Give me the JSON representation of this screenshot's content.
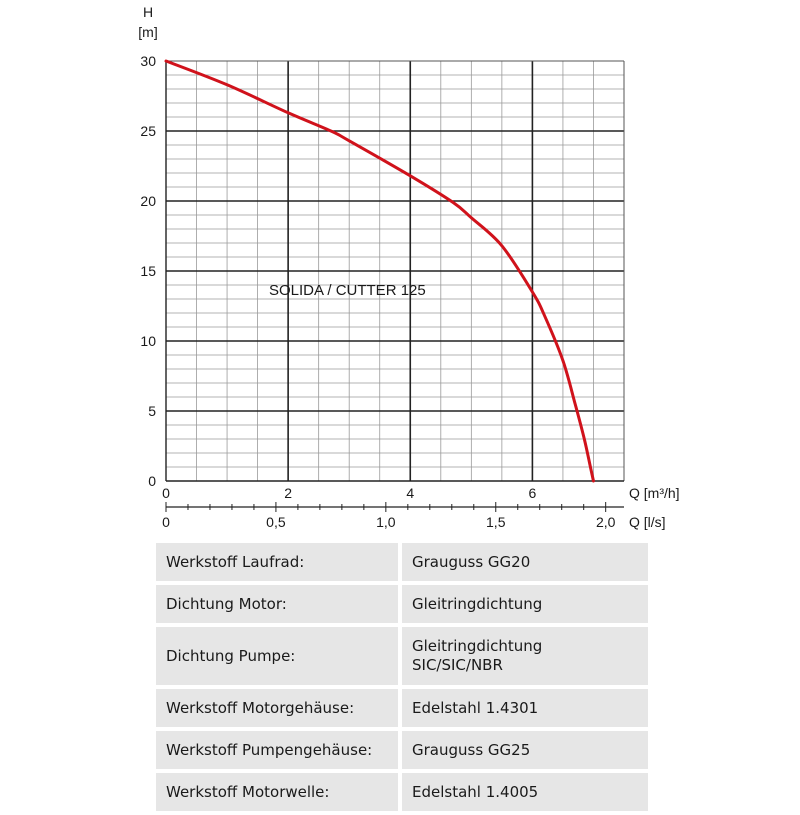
{
  "chart_data": {
    "type": "line",
    "x_axis_label": "Q [m³/h]",
    "x2_axis_label": "Q [l/s]",
    "y_axis_label_line1": "H",
    "y_axis_label_line2": "[m]",
    "xlim": [
      0,
      7.5
    ],
    "ylim": [
      0,
      30
    ],
    "x_ticks": [
      0,
      2,
      4,
      6
    ],
    "x_tick_labels": [
      "0",
      "2",
      "4",
      "6"
    ],
    "x2_ticks": [
      0,
      0.5,
      1.0,
      1.5,
      2.0
    ],
    "x2_tick_labels": [
      "0",
      "0,5",
      "1,0",
      "1,5",
      "2,0"
    ],
    "y_ticks": [
      0,
      5,
      10,
      15,
      20,
      25,
      30
    ],
    "y_tick_labels": [
      "0",
      "5",
      "10",
      "15",
      "20",
      "25",
      "30"
    ],
    "grid": true,
    "annotation": "SOLIDA / CUTTER 125",
    "series": [
      {
        "color": "#d0121b",
        "x": [
          0,
          1,
          2,
          2.7,
          3,
          4,
          4.7,
          5,
          5.5,
          6,
          6.2,
          6.5,
          6.7,
          6.85,
          6.95,
          7.0
        ],
        "y": [
          30,
          28.3,
          26.3,
          25,
          24.3,
          21.8,
          19.9,
          18.8,
          16.8,
          13.5,
          11.8,
          8.6,
          5.5,
          3,
          1,
          0
        ]
      }
    ]
  },
  "spec_table": [
    {
      "label": "Werkstoff Laufrad:",
      "value": "Grauguss GG20"
    },
    {
      "label": "Dichtung Motor:",
      "value": "Gleitringdichtung"
    },
    {
      "label": "Dichtung Pumpe:",
      "value": "Gleitringdichtung",
      "value2": "SIC/SIC/NBR"
    },
    {
      "label": "Werkstoff Motorgehäuse:",
      "value": "Edelstahl 1.4301"
    },
    {
      "label": "Werkstoff Pumpengehäuse:",
      "value": "Grauguss GG25"
    },
    {
      "label": "Werkstoff Motorwelle:",
      "value": "Edelstahl 1.4005"
    }
  ]
}
